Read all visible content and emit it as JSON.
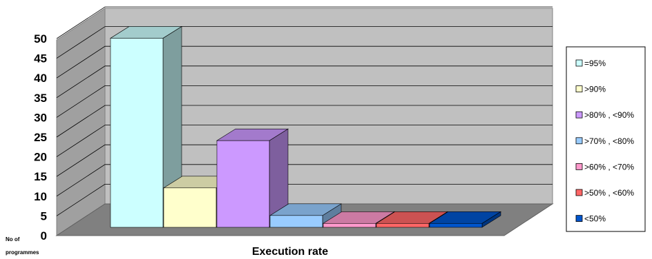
{
  "chart_data": {
    "type": "bar",
    "title": "",
    "xlabel": "Execution rate",
    "ylabel_line1": "No of",
    "ylabel_line2": "programmes",
    "ylim": [
      0,
      50
    ],
    "yticks": [
      "0",
      "5",
      "10",
      "15",
      "20",
      "25",
      "30",
      "35",
      "40",
      "45",
      "50"
    ],
    "grid": true,
    "legend_position": "right",
    "series": [
      {
        "name": "=95%",
        "value": 48,
        "color": "#ccffff"
      },
      {
        "name": ">90%",
        "value": 10,
        "color": "#ffffcc"
      },
      {
        "name": ">80% , <90%",
        "value": 22,
        "color": "#cc99ff"
      },
      {
        "name": ">70% , <80%",
        "value": 3,
        "color": "#99ccff"
      },
      {
        "name": ">60% , <70%",
        "value": 1,
        "color": "#ff99cc"
      },
      {
        "name": ">50% , <60%",
        "value": 1,
        "color": "#ff6666"
      },
      {
        "name": "<50%",
        "value": 1,
        "color": "#0055cc"
      }
    ]
  }
}
